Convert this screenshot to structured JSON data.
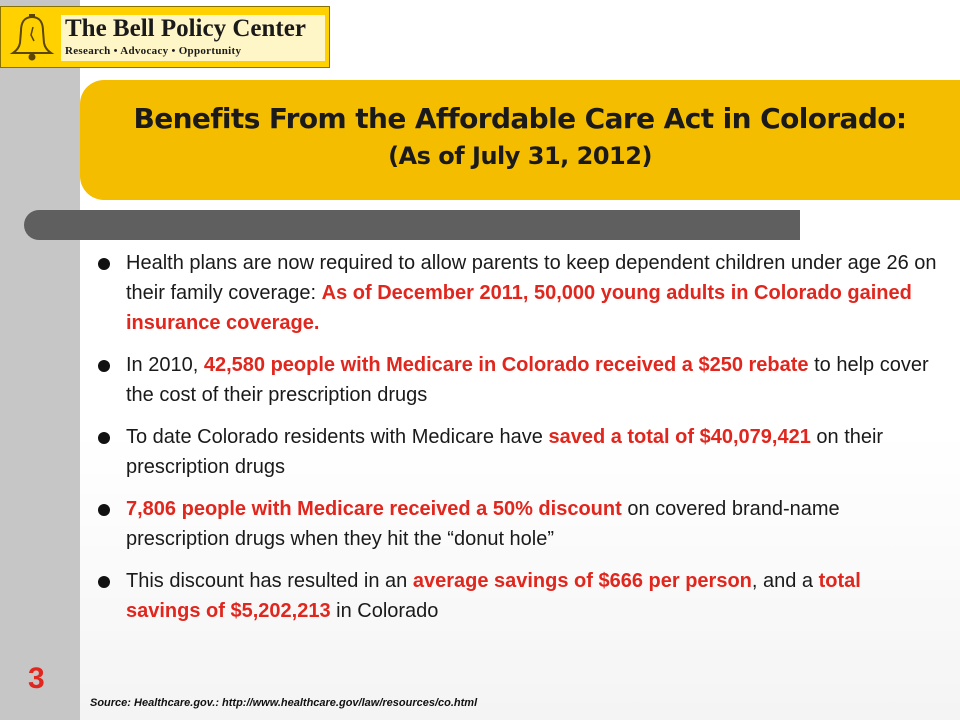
{
  "logo": {
    "name": "The Bell Policy Center",
    "tagline": "Research • Advocacy • Opportunity"
  },
  "title": {
    "line1": "Benefits From the Affordable Care Act in Colorado:",
    "line2": "(As of July 31, 2012)"
  },
  "bullets": [
    {
      "parts": [
        {
          "text": "Health plans are now required to allow parents to keep dependent children under age 26 on their family coverage:  ",
          "highlight": false
        },
        {
          "text": "As of December 2011, 50,000 young adults in Colorado gained insurance coverage.",
          "highlight": true
        }
      ]
    },
    {
      "parts": [
        {
          "text": "In 2010, ",
          "highlight": false
        },
        {
          "text": "42,580 people with Medicare in Colorado received a $250 rebate",
          "highlight": true
        },
        {
          "text": " to help cover the cost of their prescription drugs",
          "highlight": false
        }
      ]
    },
    {
      "parts": [
        {
          "text": "To date Colorado residents with Medicare have ",
          "highlight": false
        },
        {
          "text": "saved a total of $40,079,421",
          "highlight": true
        },
        {
          "text": " on their prescription drugs",
          "highlight": false
        }
      ]
    },
    {
      "parts": [
        {
          "text": "7,806 people with Medicare received a 50% discount",
          "highlight": true
        },
        {
          "text": " on covered brand-name prescription drugs when they hit the “donut hole”",
          "highlight": false
        }
      ]
    },
    {
      "parts": [
        {
          "text": "This discount has resulted in an ",
          "highlight": false
        },
        {
          "text": "average savings of $666 per person",
          "highlight": true
        },
        {
          "text": ", and a ",
          "highlight": false
        },
        {
          "text": "total savings of $5,202,213",
          "highlight": true
        },
        {
          "text": " in Colorado",
          "highlight": false
        }
      ]
    }
  ],
  "page_number": "3",
  "source": "Source:  Healthcare.gov.: http://www.healthcare.gov/law/resources/co.html",
  "colors": {
    "accent_gold": "#f5bd00",
    "logo_yellow": "#ffd100",
    "highlight_red": "#e0261d",
    "divider_gray": "#5f5f5f",
    "strip_gray": "#c6c6c6"
  },
  "icons": {
    "logo_mark": "liberty-bell-icon",
    "bullet": "round-bullet-icon"
  }
}
